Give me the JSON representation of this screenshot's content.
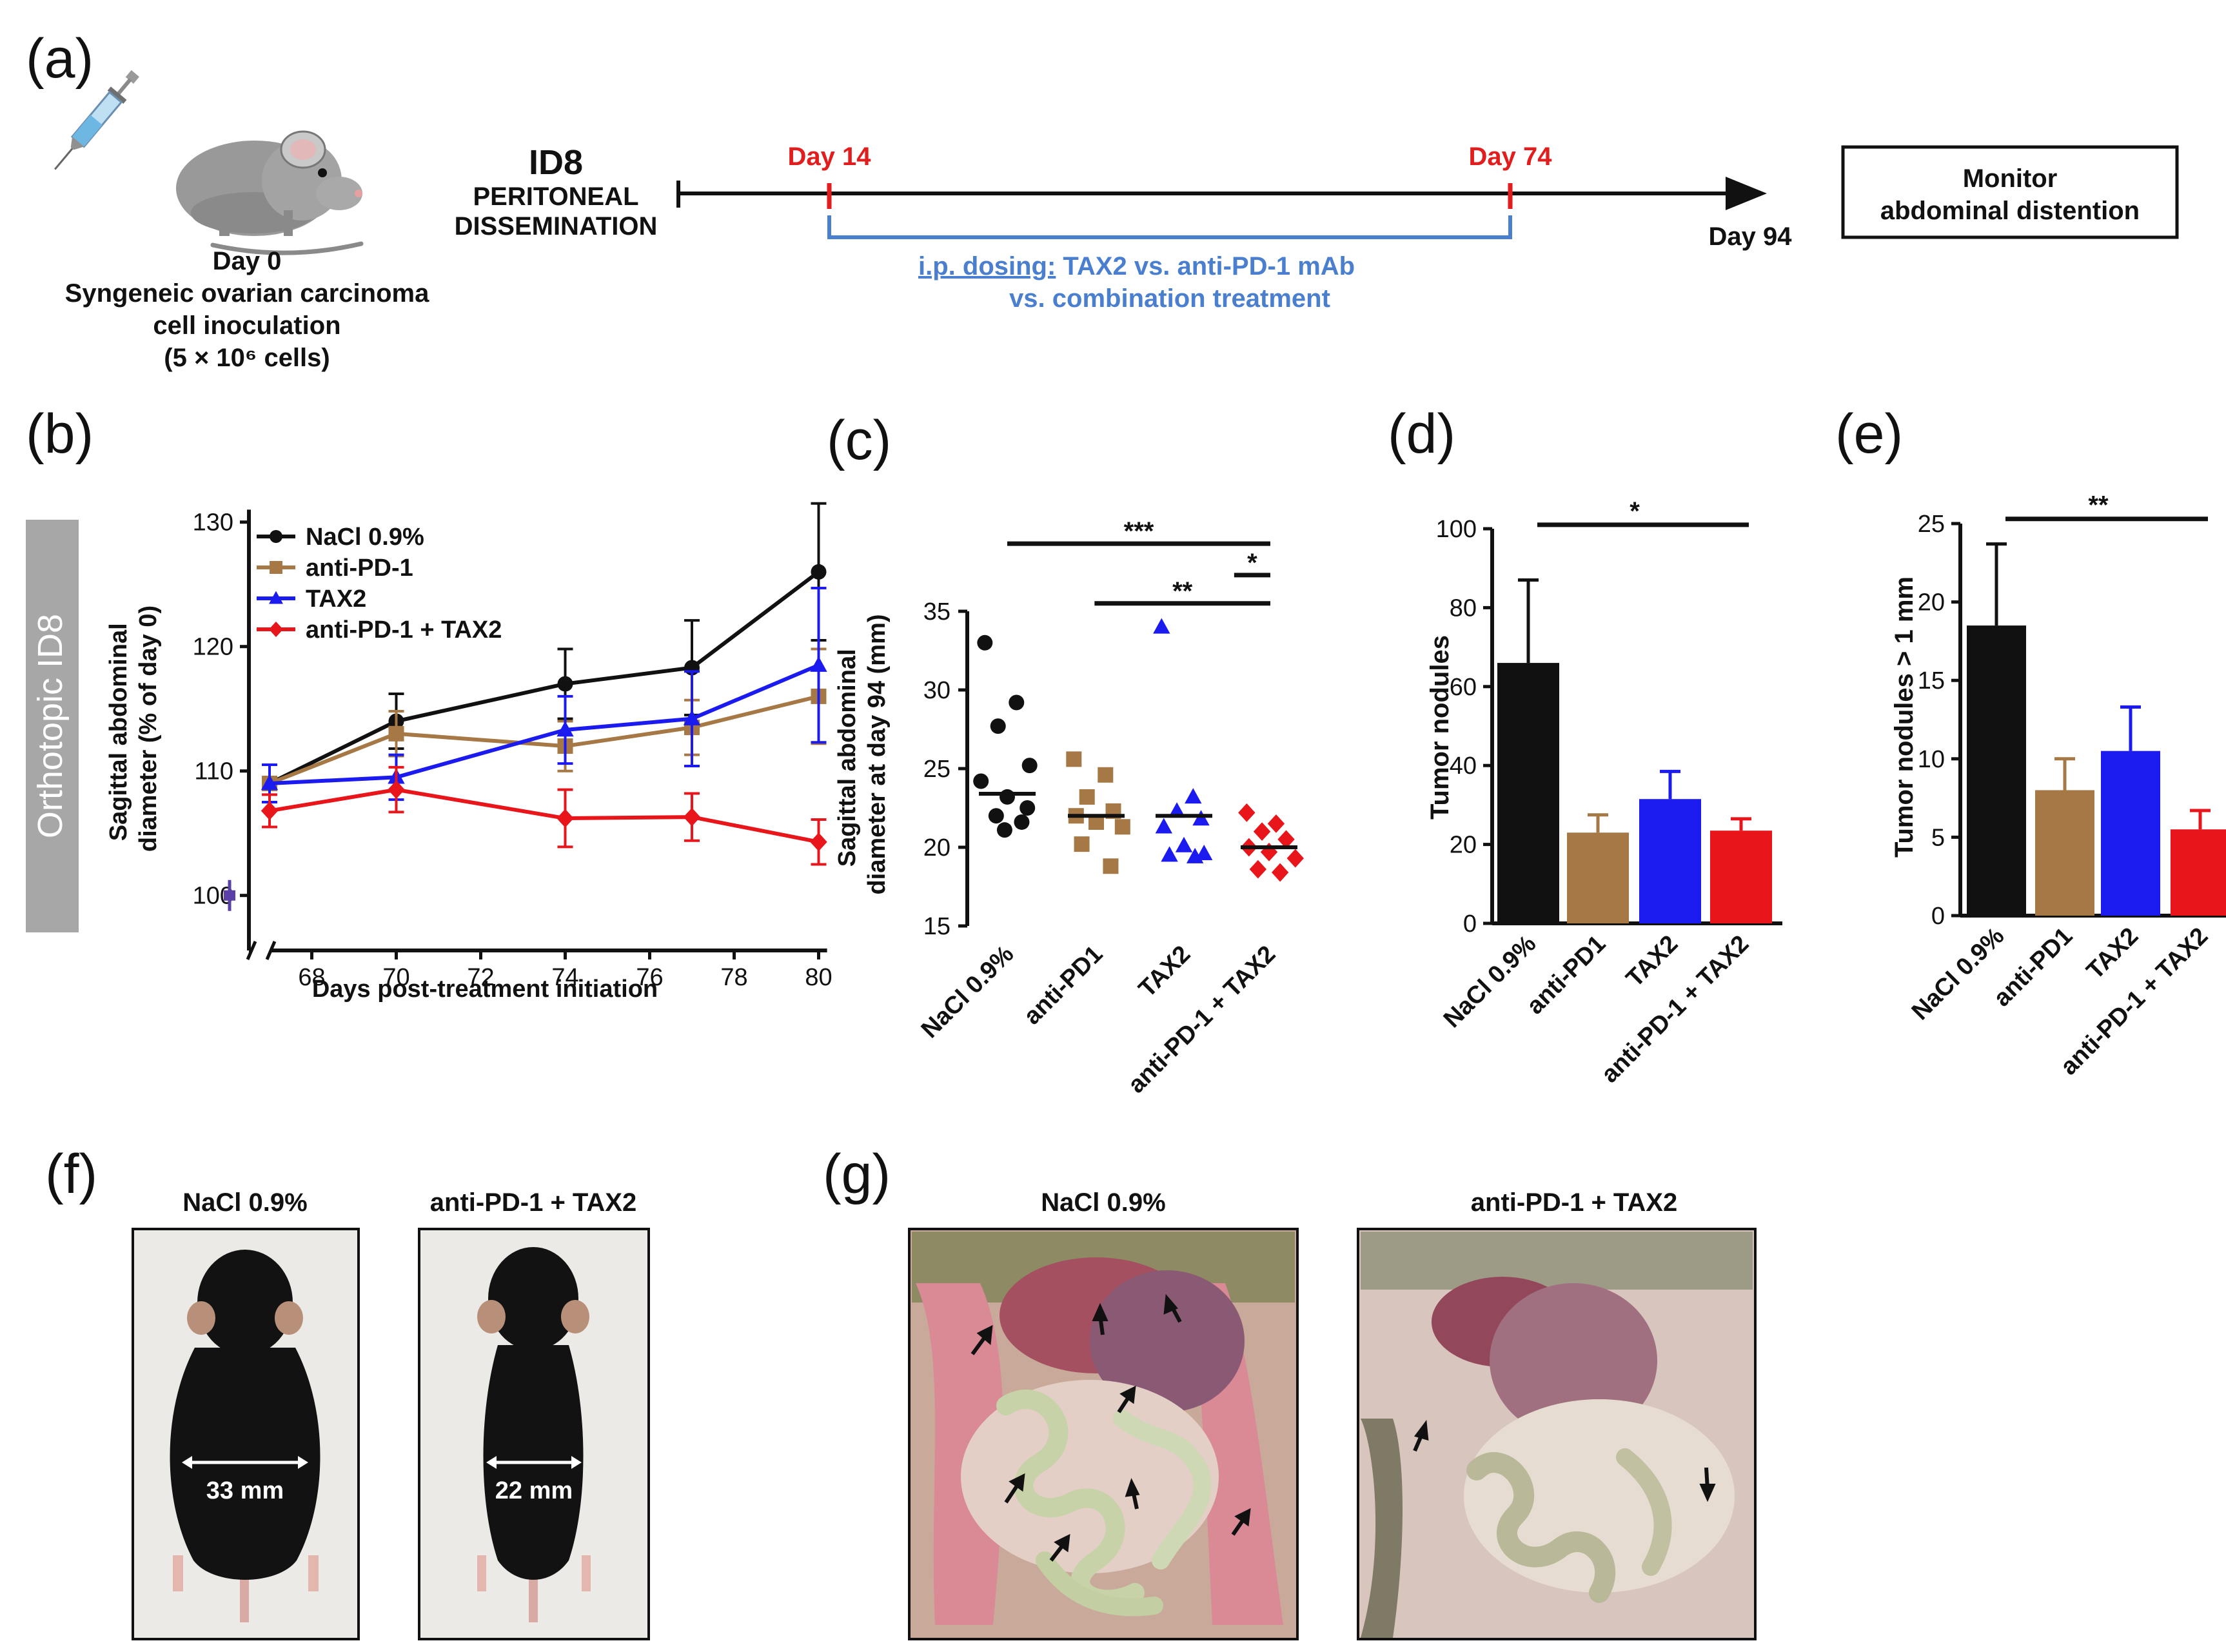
{
  "panels": {
    "a": {
      "label": "(a)",
      "day0_caption": [
        "Day 0",
        "Syngeneic ovarian carcinoma",
        "cell inoculation",
        "(5 × 10⁶ cells)"
      ],
      "model_title": "ID8",
      "model_sub": [
        "PERITONEAL",
        "DISSEMINATION"
      ],
      "day14": "Day 14",
      "day74": "Day 74",
      "day94": "Day 94",
      "dosing_head": "i.p. dosing:",
      "dosing_rest": " TAX2 vs. anti-PD-1 mAb",
      "dosing_line2": "vs. combination treatment",
      "monitor": [
        "Monitor",
        "abdominal distention"
      ]
    },
    "f": {
      "label": "(f)",
      "left_title": "NaCl 0.9%",
      "right_title": "anti-PD-1 + TAX2",
      "left_measure": "33 mm",
      "right_measure": "22 mm"
    },
    "g": {
      "label": "(g)",
      "left_title": "NaCl 0.9%",
      "right_title": "anti-PD-1 + TAX2"
    }
  },
  "colors": {
    "black": "#111111",
    "brown": "#a57845",
    "blue": "#1b1bf0",
    "red": "#e8151b",
    "timeline_red": "#e11d1d",
    "timeline_blue": "#4a7fd0",
    "side_label_bg": "#a7a7a7"
  },
  "chart_data": [
    {
      "panel": "(b)",
      "type": "line",
      "side_label": "Orthotopic ID8",
      "xlabel": "Days post-treatment initiation",
      "ylabel": "Sagittal abdominal diameter (% of day 0)",
      "x": [
        67,
        70,
        74,
        77,
        80
      ],
      "xticks": [
        68,
        70,
        72,
        74,
        76,
        78,
        80
      ],
      "ylim": [
        99,
        131
      ],
      "yticks": [
        100,
        110,
        120,
        130
      ],
      "break_point": {
        "x": 0,
        "y": 100
      },
      "series": [
        {
          "name": "NaCl 0.9%",
          "color": "#111111",
          "marker": "circle",
          "values": [
            109,
            114,
            117,
            118.3,
            126
          ],
          "err": [
            1.5,
            2.2,
            2.8,
            3.8,
            5.5
          ]
        },
        {
          "name": "anti-PD-1",
          "color": "#a57845",
          "marker": "square",
          "values": [
            109,
            113,
            112,
            113.5,
            116
          ],
          "err": [
            1.5,
            1.8,
            2.0,
            2.2,
            3.8
          ]
        },
        {
          "name": "TAX2",
          "color": "#1b1bf0",
          "marker": "triangle",
          "values": [
            109,
            109.5,
            113.3,
            114.2,
            118.5
          ],
          "err": [
            1.5,
            1.8,
            2.7,
            3.8,
            6.2
          ]
        },
        {
          "name": "anti-PD-1 + TAX2",
          "color": "#e8151b",
          "marker": "diamond",
          "values": [
            106.8,
            108.5,
            106.2,
            106.3,
            104.3
          ],
          "err": [
            1.3,
            1.8,
            2.3,
            1.9,
            1.8
          ]
        }
      ]
    },
    {
      "panel": "(c)",
      "type": "scatter",
      "ylabel": "Sagittal abdominal diameter at day 94 (mm)",
      "categories": [
        "NaCl 0.9%",
        "anti-PD1",
        "TAX2",
        "anti-PD-1 + TAX2"
      ],
      "ylim": [
        15,
        35
      ],
      "yticks": [
        15,
        20,
        25,
        30,
        35
      ],
      "series": [
        {
          "name": "NaCl 0.9%",
          "color": "#111111",
          "marker": "circle",
          "values": [
            33,
            29.2,
            27.7,
            25.2,
            24.2,
            23.2,
            22.5,
            22,
            21.6,
            21.1
          ],
          "median": 23.4
        },
        {
          "name": "anti-PD1",
          "color": "#a57845",
          "marker": "square",
          "values": [
            25.6,
            24.6,
            23.2,
            22.3,
            22,
            21.6,
            21.3,
            20.2,
            18.8
          ],
          "median": 22
        },
        {
          "name": "TAX2",
          "color": "#1b1bf0",
          "marker": "triangle",
          "values": [
            34,
            23.2,
            22.3,
            21.8,
            21.3,
            20.1,
            19.6,
            19.5,
            19.4
          ],
          "median": 22
        },
        {
          "name": "anti-PD-1 + TAX2",
          "color": "#e8151b",
          "marker": "diamond",
          "values": [
            22.2,
            21.5,
            21,
            20.5,
            20,
            19.7,
            19.3,
            18.6,
            18.4
          ],
          "median": 20
        }
      ],
      "significance": [
        {
          "label": "***",
          "from": 0,
          "to": 3,
          "y": 39.3
        },
        {
          "label": "*",
          "from": 2.6,
          "to": 3,
          "y": 37.3
        },
        {
          "label": "**",
          "from": 1,
          "to": 3,
          "y": 35.5
        }
      ]
    },
    {
      "panel": "(d)",
      "type": "bar",
      "ylabel": "Tumor nodules",
      "categories": [
        "NaCl 0.9%",
        "anti-PD1",
        "TAX2",
        "anti-PD-1 + TAX2"
      ],
      "values": [
        66,
        23,
        31.5,
        23.5
      ],
      "err": [
        21,
        4.5,
        7,
        3
      ],
      "colors": [
        "#111111",
        "#a57845",
        "#1b1bf0",
        "#e8151b"
      ],
      "ylim": [
        0,
        100
      ],
      "yticks": [
        0,
        20,
        40,
        60,
        80,
        100
      ],
      "significance": [
        {
          "label": "*",
          "from": 0,
          "to": 3,
          "y": 101
        }
      ]
    },
    {
      "panel": "(e)",
      "type": "bar",
      "ylabel": "Tumor nodules > 1 mm",
      "categories": [
        "NaCl 0.9%",
        "anti-PD1",
        "TAX2",
        "anti-PD-1 + TAX2"
      ],
      "values": [
        18.5,
        8,
        10.5,
        5.5
      ],
      "err": [
        5.2,
        2,
        2.8,
        1.2
      ],
      "colors": [
        "#111111",
        "#a57845",
        "#1b1bf0",
        "#e8151b"
      ],
      "ylim": [
        0,
        25
      ],
      "yticks": [
        0,
        5,
        10,
        15,
        20,
        25
      ],
      "significance": [
        {
          "label": "**",
          "from": 0,
          "to": 3,
          "y": 25.3
        }
      ]
    }
  ]
}
